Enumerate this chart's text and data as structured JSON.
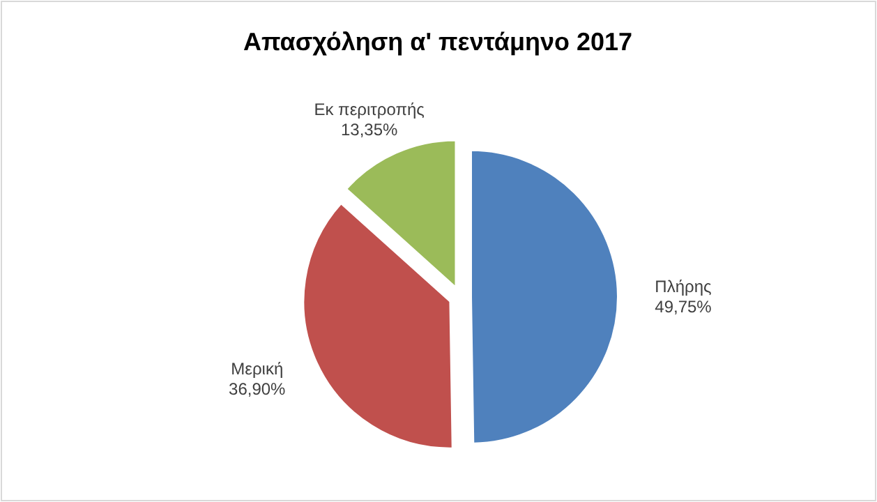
{
  "chart_data": {
    "type": "pie",
    "title": "Απασχόληση α' πεντάμηνο 2017",
    "categories": [
      "Πλήρης",
      "Μερική",
      "Εκ περιτροπής"
    ],
    "values": [
      49.75,
      36.9,
      13.35
    ],
    "value_labels": [
      "49,75%",
      "36,90%",
      "13,35%"
    ],
    "colors": [
      "#4f81bd",
      "#c0504d",
      "#9bbb59"
    ],
    "legend": false
  }
}
